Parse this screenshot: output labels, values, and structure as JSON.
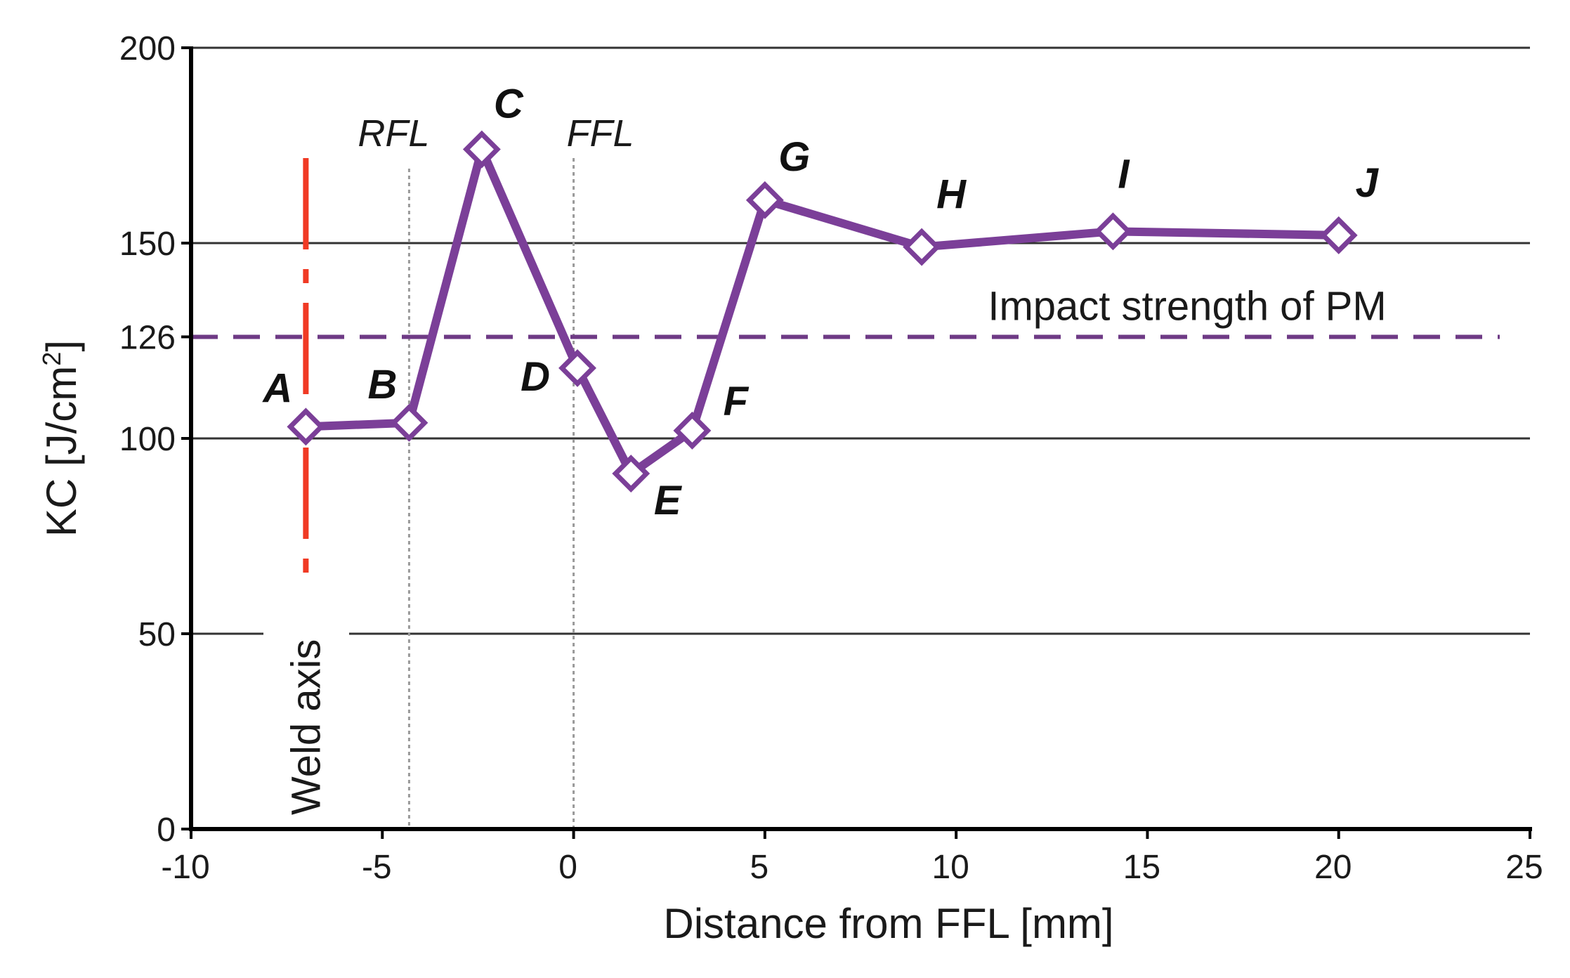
{
  "chart_data": {
    "type": "line",
    "title": "",
    "xlabel": "Distance from FFL [mm]",
    "ylabel_main": "KC [J/cm",
    "ylabel_sup": "2",
    "ylabel_end": "]",
    "xlim": [
      -10,
      25
    ],
    "ylim": [
      0,
      200
    ],
    "x_ticks": [
      -10,
      -5,
      0,
      5,
      10,
      15,
      20,
      25
    ],
    "x_tick_labels": [
      "-10",
      "-5",
      "0",
      "5",
      "10",
      "15",
      "20",
      "25"
    ],
    "y_ticks": [
      0,
      50,
      100,
      126,
      150,
      200
    ],
    "y_tick_labels": [
      "0",
      "50",
      "100",
      "126",
      "150",
      "200"
    ],
    "gridlines_y": [
      50,
      100,
      150,
      200
    ],
    "series": [
      {
        "name": "KC",
        "color": "#7b3f98",
        "points": [
          {
            "label": "A",
            "x": -7.0,
            "y": 103
          },
          {
            "label": "B",
            "x": -4.3,
            "y": 104
          },
          {
            "label": "C",
            "x": -2.4,
            "y": 174
          },
          {
            "label": "D",
            "x": 0.1,
            "y": 118
          },
          {
            "label": "E",
            "x": 1.5,
            "y": 91
          },
          {
            "label": "F",
            "x": 3.1,
            "y": 102
          },
          {
            "label": "G",
            "x": 5.0,
            "y": 161
          },
          {
            "label": "H",
            "x": 9.1,
            "y": 149
          },
          {
            "label": "I",
            "x": 14.1,
            "y": 153
          },
          {
            "label": "J",
            "x": 20.0,
            "y": 152
          }
        ]
      }
    ],
    "reference_lines": {
      "impact_strength": {
        "y": 126,
        "label": "Impact strength of PM",
        "color": "#6e3a85"
      },
      "weld_axis": {
        "x": -7.0,
        "label": "Weld axis",
        "color": "#f03a24"
      },
      "rfl": {
        "x": -4.3,
        "label": "RFL"
      },
      "ffl": {
        "x": 0.0,
        "label": "FFL"
      }
    }
  }
}
